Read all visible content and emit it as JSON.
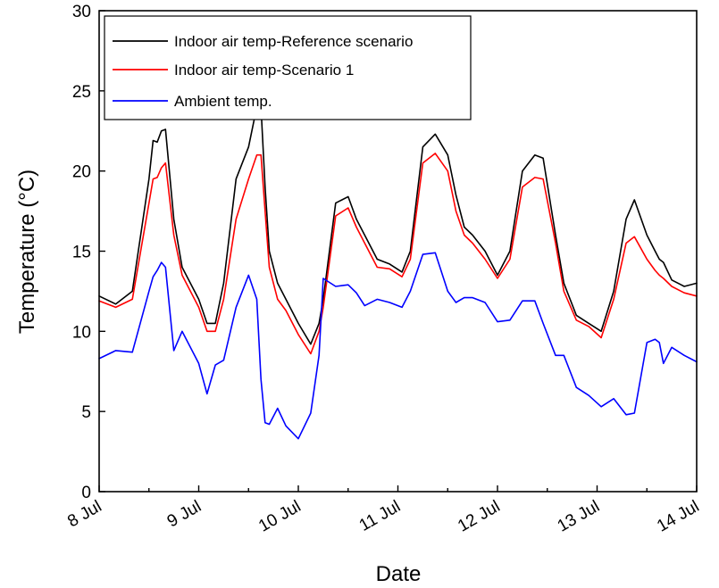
{
  "chart_data": {
    "type": "line",
    "title": "",
    "xlabel": "Date",
    "ylabel": "Temperature (°C)",
    "ylim": [
      0,
      30
    ],
    "yticks": [
      0,
      5,
      10,
      15,
      20,
      25,
      30
    ],
    "xlim": [
      "8 Jul",
      "14 Jul"
    ],
    "xticks": [
      "8 Jul",
      "9 Jul",
      "10 Jul",
      "11 Jul",
      "12 Jul",
      "13 Jul",
      "14 Jul"
    ],
    "grid": false,
    "legend_position": "top-left",
    "x": [
      "8 Jul 00:00",
      "8 Jul 04:00",
      "8 Jul 08:00",
      "8 Jul 12:00",
      "8 Jul 13:00",
      "8 Jul 14:00",
      "8 Jul 15:00",
      "8 Jul 16:00",
      "8 Jul 18:00",
      "8 Jul 20:00",
      "9 Jul 00:00",
      "9 Jul 02:00",
      "9 Jul 04:00",
      "9 Jul 06:00",
      "9 Jul 09:00",
      "9 Jul 12:00",
      "9 Jul 14:00",
      "9 Jul 15:00",
      "9 Jul 16:00",
      "9 Jul 17:00",
      "9 Jul 19:00",
      "9 Jul 21:00",
      "10 Jul 00:00",
      "10 Jul 03:00",
      "10 Jul 05:00",
      "10 Jul 06:00",
      "10 Jul 09:00",
      "10 Jul 12:00",
      "10 Jul 14:00",
      "10 Jul 16:00",
      "10 Jul 19:00",
      "10 Jul 22:00",
      "11 Jul 01:00",
      "11 Jul 03:00",
      "11 Jul 06:00",
      "11 Jul 09:00",
      "11 Jul 12:00",
      "11 Jul 14:00",
      "11 Jul 16:00",
      "11 Jul 18:00",
      "11 Jul 21:00",
      "12 Jul 00:00",
      "12 Jul 03:00",
      "12 Jul 06:00",
      "12 Jul 09:00",
      "12 Jul 11:00",
      "12 Jul 14:00",
      "12 Jul 16:00",
      "12 Jul 19:00",
      "12 Jul 22:00",
      "13 Jul 01:00",
      "13 Jul 04:00",
      "13 Jul 07:00",
      "13 Jul 09:00",
      "13 Jul 12:00",
      "13 Jul 14:00",
      "13 Jul 15:00",
      "13 Jul 16:00",
      "13 Jul 18:00",
      "13 Jul 21:00",
      "14 Jul 00:00"
    ],
    "series": [
      {
        "name": "Indoor air temp-Reference scenario",
        "color": "#000000",
        "values": [
          12.2,
          11.7,
          12.5,
          19.5,
          21.9,
          21.8,
          22.5,
          22.6,
          17.0,
          14.0,
          12.0,
          10.5,
          10.5,
          13.0,
          19.5,
          21.5,
          24.0,
          24.0,
          19.0,
          15.0,
          13.0,
          12.0,
          10.5,
          9.2,
          10.5,
          12.0,
          18.0,
          18.4,
          17.0,
          16.0,
          14.5,
          14.2,
          13.7,
          15.0,
          21.5,
          22.3,
          21.0,
          18.5,
          16.5,
          16.0,
          15.0,
          13.5,
          15.0,
          20.0,
          21.0,
          20.8,
          16.0,
          13.0,
          11.0,
          10.5,
          10.0,
          12.5,
          17.0,
          18.2,
          16.0,
          15.0,
          14.5,
          14.3,
          13.2,
          12.8,
          13.0
        ]
      },
      {
        "name": "Indoor air temp-Scenario 1",
        "color": "#ff0000",
        "values": [
          11.9,
          11.5,
          12.0,
          18.0,
          19.5,
          19.6,
          20.2,
          20.5,
          16.0,
          13.5,
          11.5,
          10.0,
          10.0,
          12.0,
          17.0,
          19.5,
          21.0,
          21.0,
          17.5,
          14.0,
          12.0,
          11.3,
          9.8,
          8.6,
          10.0,
          11.5,
          17.2,
          17.7,
          16.5,
          15.5,
          14.0,
          13.9,
          13.4,
          14.5,
          20.5,
          21.1,
          20.0,
          17.5,
          16.0,
          15.5,
          14.5,
          13.3,
          14.5,
          19.0,
          19.6,
          19.5,
          15.5,
          12.5,
          10.7,
          10.3,
          9.6,
          12.0,
          15.5,
          15.9,
          14.5,
          13.8,
          13.5,
          13.3,
          12.8,
          12.4,
          12.2
        ]
      },
      {
        "name": "Ambient temp.",
        "color": "#0000ff",
        "values": [
          8.3,
          8.8,
          8.7,
          12.5,
          13.4,
          13.8,
          14.3,
          14.0,
          8.8,
          10.0,
          8.0,
          6.1,
          7.9,
          8.2,
          11.5,
          13.5,
          12.0,
          7.0,
          4.3,
          4.2,
          5.2,
          4.1,
          3.3,
          4.9,
          8.5,
          13.3,
          12.8,
          12.9,
          12.4,
          11.6,
          12.0,
          11.8,
          11.5,
          12.5,
          14.8,
          14.9,
          12.5,
          11.8,
          12.1,
          12.1,
          11.8,
          10.6,
          10.7,
          11.9,
          11.9,
          10.5,
          8.5,
          8.5,
          6.5,
          6.0,
          5.3,
          5.8,
          4.8,
          4.9,
          9.3,
          9.5,
          9.3,
          8.0,
          9.0,
          8.5,
          8.1
        ]
      }
    ],
    "legend": [
      "Indoor air temp-Reference scenario",
      "Indoor air temp-Scenario 1",
      "Ambient temp."
    ]
  }
}
